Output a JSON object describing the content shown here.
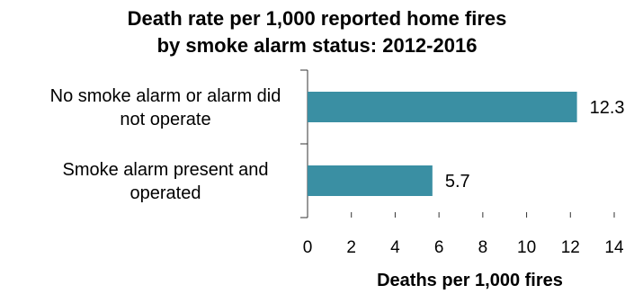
{
  "chart_data": {
    "type": "bar",
    "orientation": "horizontal",
    "title": "Death rate per 1,000 reported home fires",
    "subtitle": "by smoke alarm status:  2012-2016",
    "categories": [
      [
        "No smoke alarm or alarm did",
        "not operate"
      ],
      [
        "Smoke alarm present and",
        "operated"
      ]
    ],
    "values": [
      12.3,
      5.7
    ],
    "data_labels": [
      "12.3",
      "5.7"
    ],
    "xlabel": "Deaths per 1,000 fires",
    "ylabel": "",
    "xlim": [
      0,
      14
    ],
    "xticks": [
      "0",
      "2",
      "4",
      "6",
      "8",
      "10",
      "12",
      "14"
    ],
    "bar_color": "#3a8fa3",
    "grid": false,
    "legend": "none"
  }
}
